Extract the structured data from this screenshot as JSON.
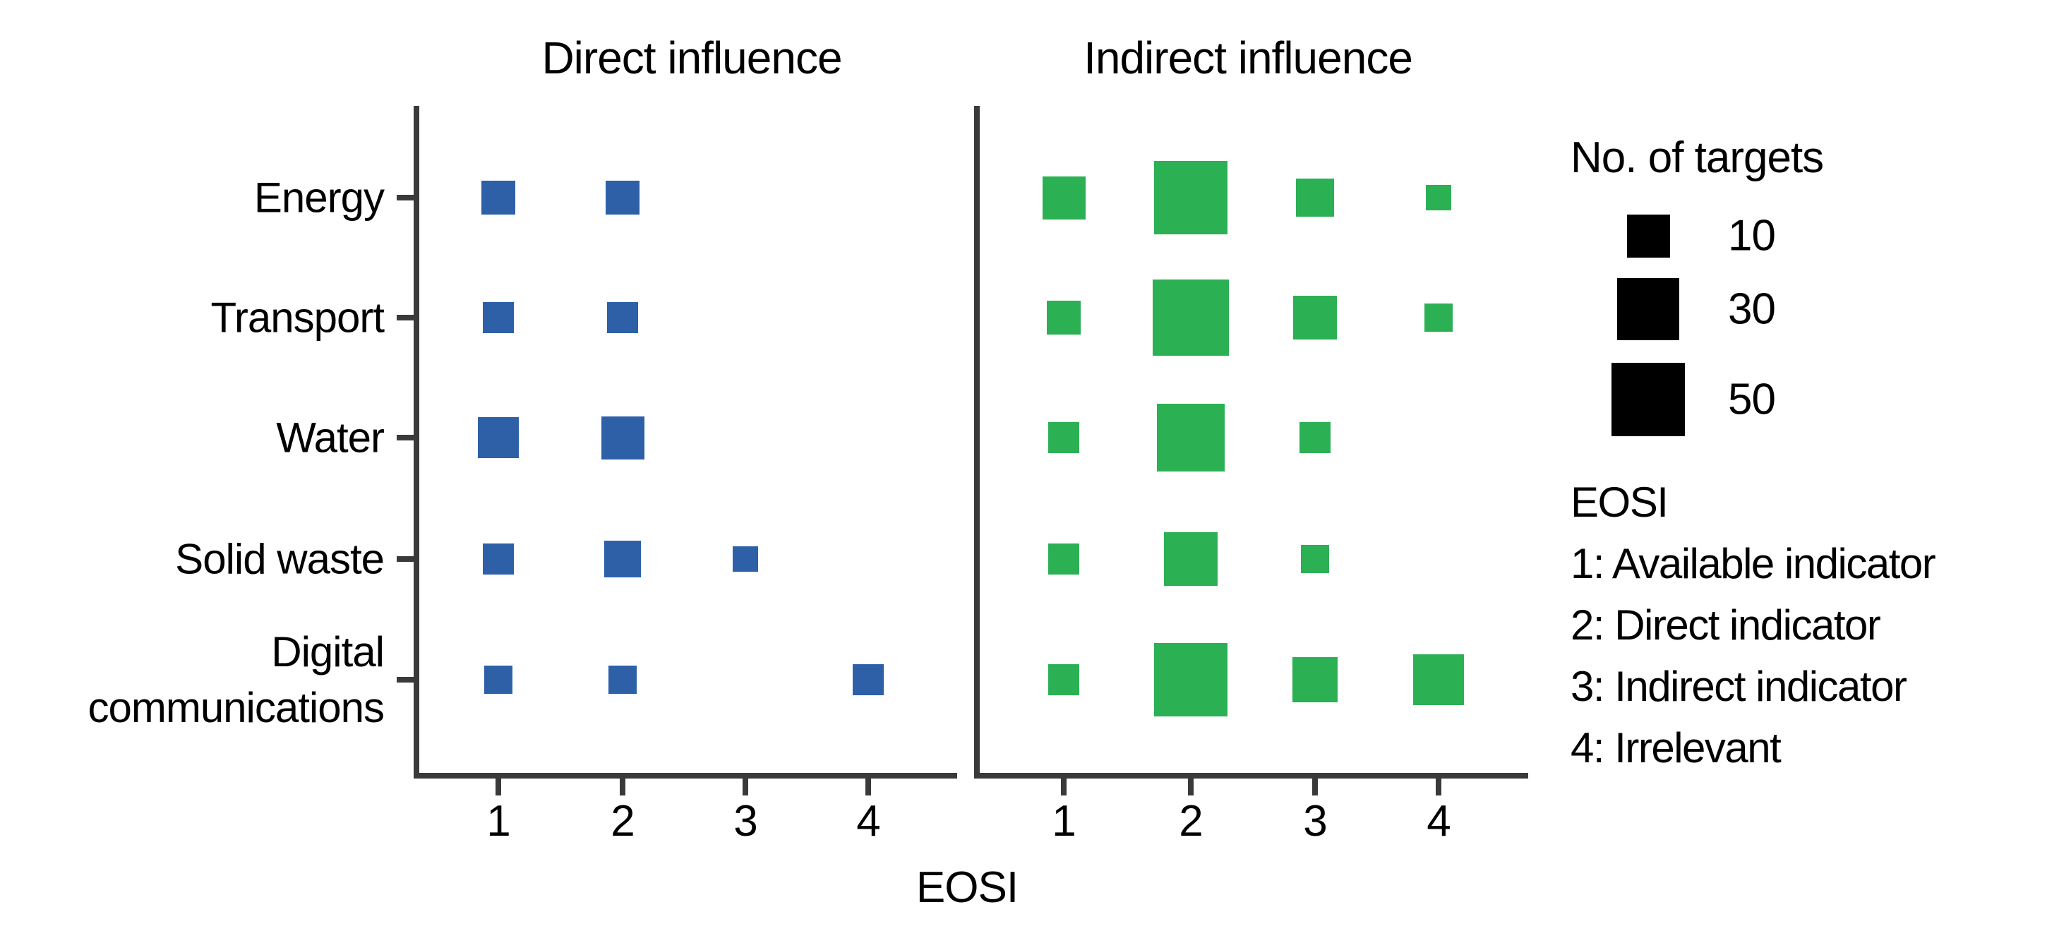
{
  "chart_data": {
    "type": "scatter",
    "subtype": "two-panel matrix of size-encoded squares",
    "categories_y": [
      "Energy",
      "Transport",
      "Water",
      "Solid waste",
      "Digital communications"
    ],
    "x_tick_labels": [
      "1",
      "2",
      "3",
      "4"
    ],
    "xlabel": "EOSI",
    "grid": false,
    "size_legend": {
      "title": "No. of targets",
      "values": [
        10,
        30,
        50
      ],
      "labels": [
        "10",
        "30",
        "50"
      ],
      "scale": "square side proportional to cube root of value; side(10)=61px at 2900px canvas"
    },
    "panels": [
      {
        "title": "Direct influence",
        "color": "#2e60a8",
        "values": [
          [
            5,
            5,
            null,
            null
          ],
          [
            4,
            4,
            null,
            null
          ],
          [
            9,
            10,
            null,
            null
          ],
          [
            4,
            6,
            2,
            null
          ],
          [
            3,
            3,
            null,
            4
          ]
        ]
      },
      {
        "title": "Indirect influence",
        "color": "#2bb054",
        "values": [
          [
            10,
            50,
            7,
            2
          ],
          [
            5,
            55,
            11,
            3
          ],
          [
            4,
            40,
            4,
            null
          ],
          [
            4,
            20,
            3,
            null
          ],
          [
            4,
            50,
            12,
            16
          ]
        ]
      }
    ]
  },
  "legend_eosi": {
    "title": "EOSI",
    "lines": [
      "1: Available indicator",
      "2: Direct indicator",
      "3: Indirect indicator",
      "4: Irrelevant"
    ]
  },
  "colors": {
    "direct_blue": "#2e60a8",
    "indirect_green": "#2bb054",
    "axis": "#3a3a3a",
    "text": "#000000",
    "legend_square": "#000000",
    "background": "#ffffff"
  }
}
